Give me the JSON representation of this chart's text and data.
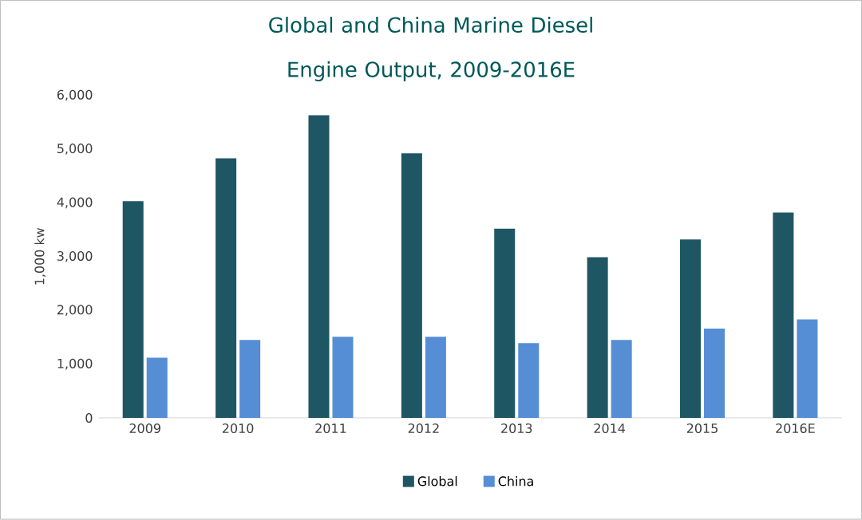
{
  "chart_data": {
    "type": "bar",
    "title": "Global and China Marine Diesel Engine Output, 2009-2016E",
    "ylabel": "1,000 kw",
    "categories": [
      "2009",
      "2010",
      "2011",
      "2012",
      "2013",
      "2014",
      "2015",
      "2016E"
    ],
    "series": [
      {
        "name": "Global",
        "color": "#1f5664",
        "values": [
          4030,
          4830,
          5630,
          4920,
          3520,
          2990,
          3320,
          3820
        ]
      },
      {
        "name": "China",
        "color": "#558ed5",
        "values": [
          1120,
          1450,
          1510,
          1510,
          1390,
          1450,
          1660,
          1830
        ]
      }
    ],
    "ylim": [
      0,
      6000
    ],
    "yticks": [
      {
        "value": 0,
        "label": "0"
      },
      {
        "value": 1000,
        "label": "1,000"
      },
      {
        "value": 2000,
        "label": "2,000"
      },
      {
        "value": 3000,
        "label": "3,000"
      },
      {
        "value": 4000,
        "label": "4,000"
      },
      {
        "value": 5000,
        "label": "5,000"
      },
      {
        "value": 6000,
        "label": "6,000"
      }
    ],
    "legend": "bottom"
  }
}
